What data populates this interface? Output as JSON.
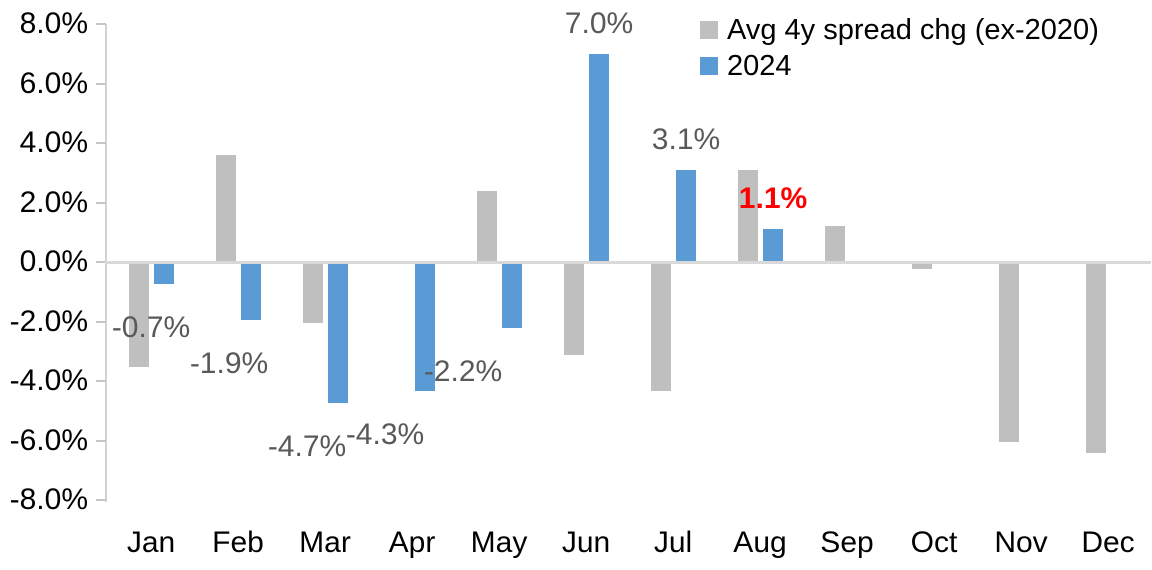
{
  "chart_data": {
    "type": "bar",
    "title": "",
    "categories": [
      "Jan",
      "Feb",
      "Mar",
      "Apr",
      "May",
      "Jun",
      "Jul",
      "Aug",
      "Sep",
      "Oct",
      "Nov",
      "Dec"
    ],
    "y_axis": {
      "min": -8.0,
      "max": 8.0,
      "step": 2.0,
      "tick_labels": [
        "8.0%",
        "6.0%",
        "4.0%",
        "2.0%",
        "0.0%",
        "-2.0%",
        "-4.0%",
        "-6.0%",
        "-8.0%"
      ]
    },
    "grid": false,
    "legend_position": "top-right",
    "series": [
      {
        "name": "Avg 4y spread chg (ex-2020)",
        "color": "#bfbfbf",
        "values": [
          -3.5,
          3.6,
          -2.0,
          0.0,
          2.4,
          -3.1,
          -4.3,
          3.1,
          1.2,
          -0.2,
          -6.0,
          -6.4
        ]
      },
      {
        "name": "2024",
        "color": "#5b9bd5",
        "values": [
          -0.7,
          -1.9,
          -4.7,
          -4.3,
          -2.2,
          7.0,
          3.1,
          1.1,
          null,
          null,
          null,
          null
        ]
      }
    ],
    "data_labels": [
      {
        "category": "Jan",
        "text": "-0.7%",
        "color": "#595959",
        "bold": false
      },
      {
        "category": "Feb",
        "text": "-1.9%",
        "color": "#595959",
        "bold": false
      },
      {
        "category": "Mar",
        "text": "-4.7%",
        "color": "#595959",
        "bold": false
      },
      {
        "category": "Apr",
        "text": "-4.3%",
        "color": "#595959",
        "bold": false
      },
      {
        "category": "May",
        "text": "-2.2%",
        "color": "#595959",
        "bold": false
      },
      {
        "category": "Jun",
        "text": "7.0%",
        "color": "#595959",
        "bold": false
      },
      {
        "category": "Jul",
        "text": "3.1%",
        "color": "#595959",
        "bold": false
      },
      {
        "category": "Aug",
        "text": "1.1%",
        "color": "#ff0000",
        "bold": true
      }
    ]
  }
}
